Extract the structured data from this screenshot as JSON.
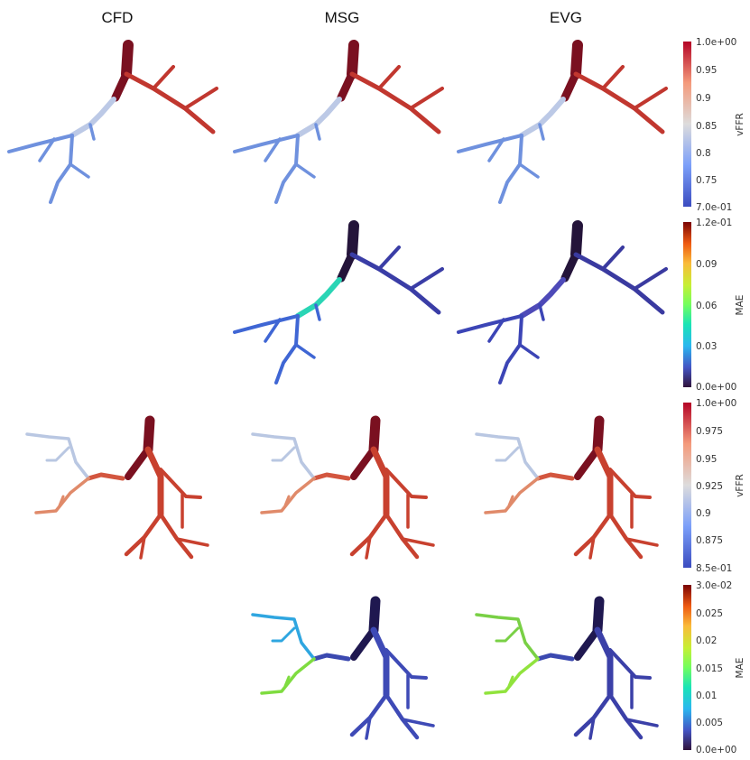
{
  "columns": [
    "CFD",
    "MSG",
    "EVG"
  ],
  "colorbars": [
    {
      "title": "vFFR",
      "colormap": "coolwarm",
      "ticks": [
        "1.0e+00",
        "0.95",
        "0.9",
        "0.85",
        "0.8",
        "0.75",
        "7.0e-01"
      ]
    },
    {
      "title": "MAE",
      "colormap": "turbo",
      "ticks": [
        "1.2e-01",
        "0.09",
        "0.06",
        "0.03",
        "0.0e+00"
      ]
    },
    {
      "title": "vFFR",
      "colormap": "coolwarm",
      "ticks": [
        "1.0e+00",
        "0.975",
        "0.95",
        "0.925",
        "0.9",
        "0.875",
        "8.5e-01"
      ]
    },
    {
      "title": "MAE",
      "colormap": "turbo",
      "ticks": [
        "3.0e-02",
        "0.025",
        "0.02",
        "0.015",
        "0.01",
        "0.005",
        "0.0e+00"
      ]
    }
  ],
  "panels": [
    {
      "row": 0,
      "column": "CFD",
      "visible": true
    },
    {
      "row": 0,
      "column": "MSG",
      "visible": true
    },
    {
      "row": 0,
      "column": "EVG",
      "visible": true
    },
    {
      "row": 1,
      "column": "CFD",
      "visible": false
    },
    {
      "row": 1,
      "column": "MSG",
      "visible": true
    },
    {
      "row": 1,
      "column": "EVG",
      "visible": true
    },
    {
      "row": 2,
      "column": "CFD",
      "visible": true
    },
    {
      "row": 2,
      "column": "MSG",
      "visible": true
    },
    {
      "row": 2,
      "column": "EVG",
      "visible": true
    },
    {
      "row": 3,
      "column": "CFD",
      "visible": false
    },
    {
      "row": 3,
      "column": "MSG",
      "visible": true
    },
    {
      "row": 3,
      "column": "EVG",
      "visible": true
    }
  ]
}
